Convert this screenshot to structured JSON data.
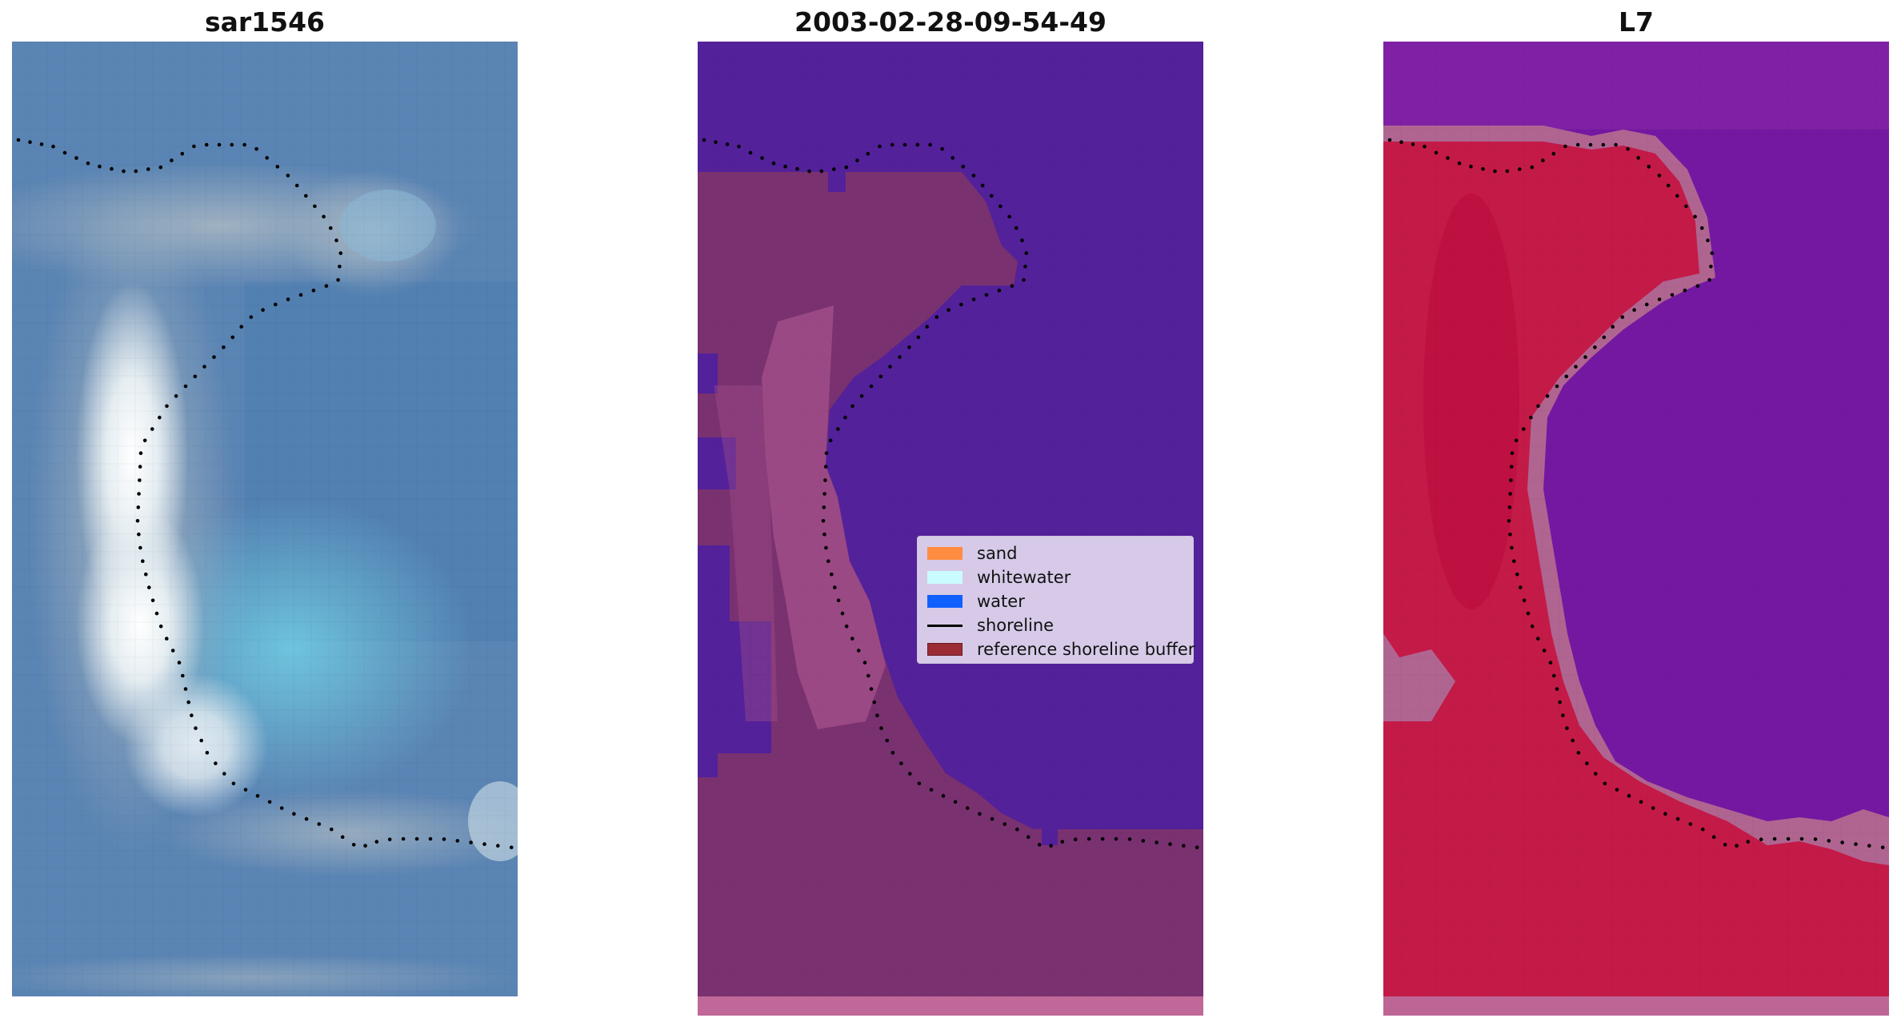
{
  "panels": [
    {
      "title": "sar1546",
      "kind": "rgb-image"
    },
    {
      "title": "2003-02-28-09-54-49",
      "kind": "classification-overlay"
    },
    {
      "title": "L7",
      "kind": "mndwi-image"
    }
  ],
  "legend": {
    "items": [
      {
        "label": "sand",
        "color": "#ff8c3f",
        "type": "patch"
      },
      {
        "label": "whitewater",
        "color": "#c9fbff",
        "type": "patch"
      },
      {
        "label": "water",
        "color": "#0f60ff",
        "type": "patch"
      },
      {
        "label": "shoreline",
        "color": "#000000",
        "type": "line"
      },
      {
        "label": "reference shoreline buffer",
        "color": "#9b2c34",
        "type": "patch"
      }
    ]
  },
  "colors": {
    "rgb_sea": "#5b85b4",
    "rgb_bright_sand": "#f4f8f9",
    "rgb_shallow_water": "#70bfd6",
    "class_water": "#53219a",
    "class_land": "#7a3170",
    "class_buffer": "#b55c95",
    "mndwi_water": "#7418a2",
    "mndwi_land": "#c41a48",
    "mndwi_edge": "#b06591"
  }
}
